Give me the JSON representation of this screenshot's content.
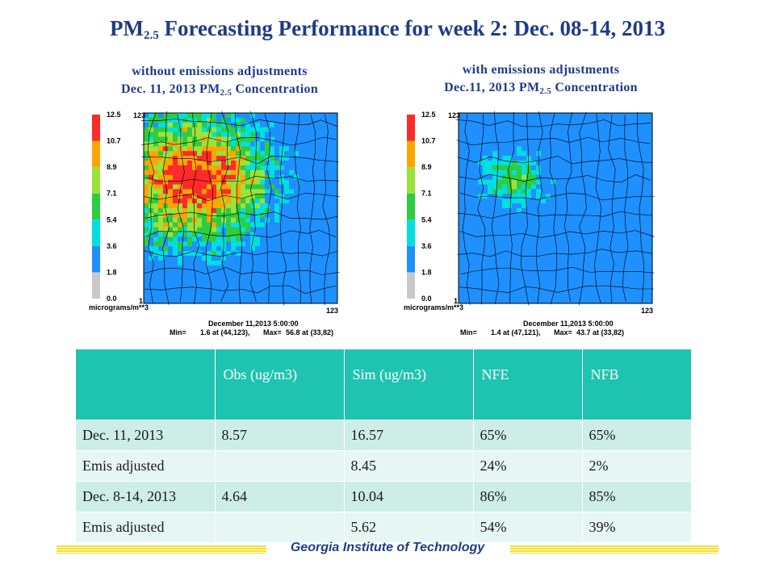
{
  "title": {
    "main": "PM",
    "sub": "2.5",
    "rest": " Forecasting Performance for week 2: Dec. 08-14, 2013"
  },
  "left_panel": {
    "heading1": "without emissions adjustments",
    "heading2_pre": "Dec. 11, 2013 PM",
    "heading2_sub": "2.5",
    "heading2_post": " Concentration",
    "axis_corner_top": "123",
    "axis_corner_bottom": "1",
    "axis_right": "123",
    "units": "micrograms/m**3",
    "timestamp": "December 11,2013 5:00:00",
    "min_label": "Min=",
    "min_value": "1.6 at (44,123),",
    "max_label": "Max=",
    "max_value": "56.8 at (33,82)"
  },
  "right_panel": {
    "heading1": "with emissions adjustments",
    "heading2_pre": "Dec.11, 2013 PM",
    "heading2_sub": "2.5",
    "heading2_post": " Concentration",
    "axis_corner_top": "123",
    "axis_corner_bottom": "1",
    "axis_right": "123",
    "units": "micrograms/m**3",
    "timestamp": "December 11,2013 5:00:00",
    "min_label": "Min=",
    "min_value": "1.4 at (47,121),",
    "max_label": "Max=",
    "max_value": "43.7 at (33,82)"
  },
  "chart_data": [
    {
      "type": "heatmap",
      "title": "Dec. 11, 2013 PM2.5 Concentration",
      "subtitle": "without emissions adjustments",
      "units": "micrograms/m**3",
      "x_range": [
        1,
        123
      ],
      "y_range": [
        1,
        123
      ],
      "colorbar": {
        "ticks": [
          "0.0",
          "1.8",
          "3.6",
          "5.4",
          "7.1",
          "8.9",
          "10.7",
          "12.5"
        ],
        "colors": [
          "#c8c8c8",
          "#1e90ff",
          "#00e0e0",
          "#2ecc40",
          "#9be23a",
          "#ffa500",
          "#ff2a2a"
        ]
      },
      "stats": {
        "min": 1.6,
        "min_at": [
          44,
          123
        ],
        "max": 56.8,
        "max_at": [
          33,
          82
        ]
      },
      "timestamp": "December 11,2013 5:00:00"
    },
    {
      "type": "heatmap",
      "title": "Dec.11, 2013 PM2.5 Concentration",
      "subtitle": "with emissions adjustments",
      "units": "micrograms/m**3",
      "x_range": [
        1,
        123
      ],
      "y_range": [
        1,
        123
      ],
      "colorbar": {
        "ticks": [
          "0.0",
          "1.8",
          "3.6",
          "5.4",
          "7.1",
          "8.9",
          "10.7",
          "12.5"
        ],
        "colors": [
          "#c8c8c8",
          "#1e90ff",
          "#00e0e0",
          "#2ecc40",
          "#9be23a",
          "#ffa500",
          "#ff2a2a"
        ]
      },
      "stats": {
        "min": 1.4,
        "min_at": [
          47,
          121
        ],
        "max": 43.7,
        "max_at": [
          33,
          82
        ]
      },
      "timestamp": "December 11,2013 5:00:00"
    },
    {
      "type": "table",
      "columns": [
        "",
        "Obs (ug/m3)",
        "Sim (ug/m3)",
        "NFE",
        "NFB"
      ],
      "rows": [
        [
          "Dec. 11, 2013",
          "8.57",
          "16.57",
          "65%",
          "65%"
        ],
        [
          "Emis adjusted",
          "",
          "8.45",
          "24%",
          "2%"
        ],
        [
          "Dec. 8-14, 2013",
          "4.64",
          "10.04",
          "86%",
          "85%"
        ],
        [
          "Emis adjusted",
          "",
          "5.62",
          "54%",
          "39%"
        ]
      ]
    }
  ],
  "footer": "Georgia Institute of Technology"
}
